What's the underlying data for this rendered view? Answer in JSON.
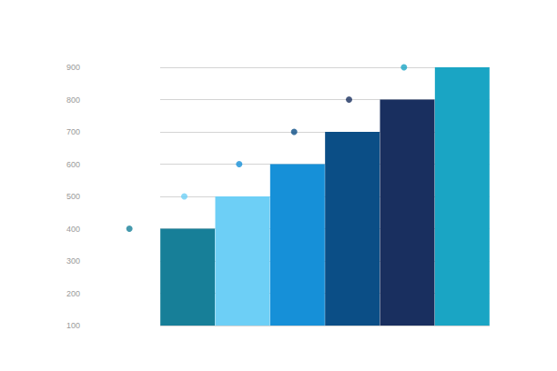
{
  "chart_data": {
    "type": "bar",
    "categories": [
      null,
      null,
      null,
      null,
      null,
      null
    ],
    "values": [
      400,
      500,
      600,
      700,
      800,
      900
    ],
    "colors": [
      "#177f98",
      "#6dcff6",
      "#1690d8",
      "#0b4e86",
      "#192f5f",
      "#1aa5c4"
    ],
    "ylim": [
      100,
      900
    ],
    "yticks": [
      100,
      200,
      300,
      400,
      500,
      600,
      700,
      800,
      900
    ],
    "grid": true,
    "tick_labels": "y",
    "marker": "circle"
  }
}
